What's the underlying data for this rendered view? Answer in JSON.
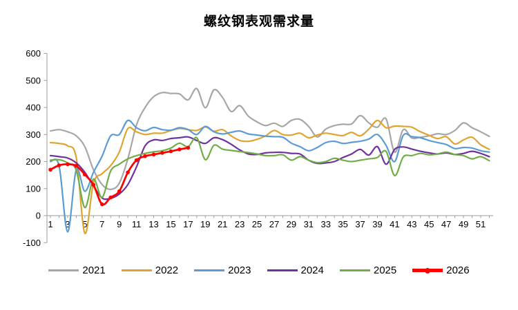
{
  "chart_data": {
    "type": "line",
    "title": "螺纹钢表观需求量",
    "xlabel": "",
    "ylabel": "",
    "xlim": [
      1,
      52
    ],
    "ylim": [
      -100,
      600
    ],
    "grid": false,
    "smooth_lines": true,
    "legend_position": "bottom",
    "y_ticks": [
      -100,
      0,
      100,
      200,
      300,
      400,
      500,
      600
    ],
    "x_tick_labels": [
      "1",
      "3",
      "5",
      "7",
      "9",
      "11",
      "13",
      "15",
      "17",
      "19",
      "21",
      "23",
      "25",
      "27",
      "29",
      "31",
      "33",
      "35",
      "37",
      "39",
      "41",
      "43",
      "45",
      "47",
      "49",
      "51"
    ],
    "axis_color": "#9b9b9b",
    "series": [
      {
        "name": "2021",
        "color": "#A6A6A6",
        "marker": "none",
        "values": [
          313,
          318,
          310,
          295,
          255,
          170,
          115,
          97,
          120,
          210,
          335,
          400,
          440,
          455,
          452,
          450,
          428,
          470,
          399,
          465,
          437,
          385,
          407,
          368,
          347,
          333,
          342,
          330,
          352,
          356,
          330,
          291,
          320,
          333,
          338,
          339,
          370,
          343,
          327,
          358,
          235,
          318,
          287,
          290,
          295,
          303,
          300,
          315,
          343,
          325,
          310,
          293
        ]
      },
      {
        "name": "2022",
        "color": "#DFA32E",
        "marker": "none",
        "values": [
          270,
          267,
          258,
          215,
          -65,
          120,
          155,
          185,
          235,
          322,
          310,
          300,
          305,
          305,
          315,
          322,
          318,
          315,
          328,
          312,
          318,
          295,
          278,
          275,
          282,
          295,
          315,
          300,
          298,
          305,
          288,
          298,
          305,
          300,
          296,
          308,
          295,
          320,
          352,
          325,
          331,
          330,
          327,
          310,
          297,
          285,
          292,
          265,
          280,
          290,
          262,
          245
        ]
      },
      {
        "name": "2023",
        "color": "#5B9BD5",
        "marker": "none",
        "values": [
          200,
          185,
          -60,
          170,
          90,
          160,
          220,
          295,
          300,
          352,
          325,
          314,
          326,
          318,
          316,
          325,
          318,
          300,
          330,
          310,
          302,
          308,
          313,
          302,
          298,
          294,
          292,
          290,
          268,
          255,
          240,
          252,
          270,
          275,
          267,
          271,
          275,
          283,
          300,
          260,
          200,
          297,
          292,
          288,
          278,
          270,
          263,
          248,
          252,
          250,
          240,
          235
        ]
      },
      {
        "name": "2024",
        "color": "#7030A0",
        "marker": "none",
        "values": [
          222,
          218,
          213,
          195,
          160,
          110,
          65,
          64,
          80,
          115,
          180,
          258,
          280,
          278,
          285,
          288,
          291,
          278,
          267,
          288,
          281,
          264,
          243,
          228,
          226,
          232,
          234,
          234,
          230,
          228,
          205,
          193,
          195,
          200,
          215,
          228,
          245,
          224,
          255,
          190,
          245,
          254,
          246,
          238,
          232,
          228,
          232,
          226,
          230,
          238,
          230,
          218
        ]
      },
      {
        "name": "2025",
        "color": "#70AD47",
        "marker": "none",
        "values": [
          205,
          207,
          195,
          168,
          30,
          135,
          67,
          165,
          190,
          210,
          222,
          230,
          236,
          240,
          250,
          268,
          255,
          288,
          207,
          260,
          246,
          241,
          237,
          233,
          228,
          222,
          222,
          225,
          205,
          218,
          205,
          196,
          200,
          212,
          205,
          200,
          205,
          210,
          215,
          238,
          148,
          217,
          222,
          230,
          225,
          228,
          235,
          226,
          222,
          210,
          218,
          203
        ]
      },
      {
        "name": "2026",
        "color": "#FF0000",
        "marker": "circle",
        "values": [
          170,
          186,
          190,
          184,
          152,
          114,
          42,
          67,
          90,
          160,
          205,
          220,
          226,
          232,
          238,
          245,
          251
        ]
      }
    ]
  }
}
